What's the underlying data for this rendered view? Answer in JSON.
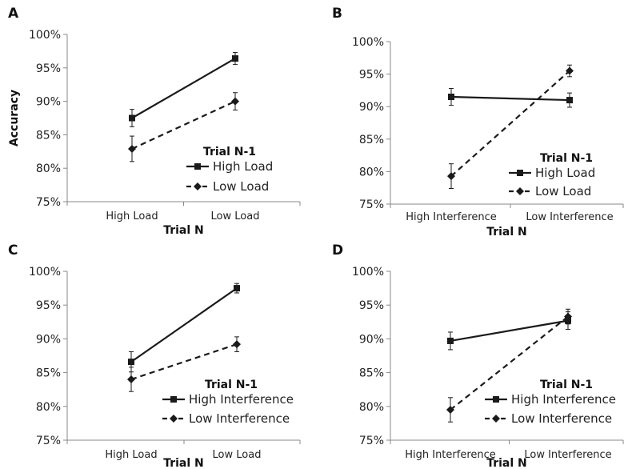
{
  "chart_data": [
    {
      "type": "line",
      "panel": "A",
      "categories": [
        "High Load",
        "Low Load"
      ],
      "xlabel": "Trial N",
      "ylabel": "Accuracy",
      "ylim": [
        0.75,
        1.0
      ],
      "yticks": [
        "75%",
        "80%",
        "85%",
        "90%",
        "95%",
        "100%"
      ],
      "legend_title": "Trial N-1",
      "series": [
        {
          "name": "High Load",
          "values": [
            0.875,
            0.964
          ],
          "errors": [
            0.013,
            0.009
          ],
          "style": "solid",
          "marker": "square"
        },
        {
          "name": "Low Load",
          "values": [
            0.829,
            0.9
          ],
          "errors": [
            0.019,
            0.013
          ],
          "style": "dashed",
          "marker": "diamond"
        }
      ]
    },
    {
      "type": "line",
      "panel": "B",
      "categories": [
        "High Interference",
        "Low Interference"
      ],
      "xlabel": "Trial N",
      "ylabel": "",
      "ylim": [
        0.75,
        1.0
      ],
      "yticks": [
        "75%",
        "80%",
        "85%",
        "90%",
        "95%",
        "100%"
      ],
      "legend_title": "Trial N-1",
      "series": [
        {
          "name": "High Load",
          "values": [
            0.915,
            0.91
          ],
          "errors": [
            0.013,
            0.011
          ],
          "style": "solid",
          "marker": "square"
        },
        {
          "name": "Low Load",
          "values": [
            0.793,
            0.955
          ],
          "errors": [
            0.019,
            0.009
          ],
          "style": "dashed",
          "marker": "diamond"
        }
      ]
    },
    {
      "type": "line",
      "panel": "C",
      "categories": [
        "High Load",
        "Low Load"
      ],
      "xlabel": "Trial N",
      "ylabel": "",
      "yticks": [
        "75%",
        "80%",
        "85%",
        "90%",
        "95%",
        "100%"
      ],
      "ylim": [
        0.75,
        1.0
      ],
      "legend_title": "Trial N-1",
      "series": [
        {
          "name": "High Interference",
          "values": [
            0.866,
            0.975
          ],
          "errors": [
            0.015,
            0.007
          ],
          "style": "solid",
          "marker": "square"
        },
        {
          "name": "Low Interference",
          "values": [
            0.84,
            0.892
          ],
          "errors": [
            0.018,
            0.011
          ],
          "style": "dashed",
          "marker": "diamond"
        }
      ]
    },
    {
      "type": "line",
      "panel": "D",
      "categories": [
        "High Interference",
        "Low Interference"
      ],
      "xlabel": "Trial N",
      "ylabel": "",
      "ylim": [
        0.75,
        1.0
      ],
      "yticks": [
        "75%",
        "80%",
        "85%",
        "90%",
        "95%",
        "100%"
      ],
      "legend_title": "Trial N-1",
      "series": [
        {
          "name": "High Interference",
          "values": [
            0.897,
            0.927
          ],
          "errors": [
            0.013,
            0.013
          ],
          "style": "solid",
          "marker": "square"
        },
        {
          "name": "Low Interference",
          "values": [
            0.795,
            0.933
          ],
          "errors": [
            0.018,
            0.011
          ],
          "style": "dashed",
          "marker": "diamond"
        }
      ]
    }
  ]
}
